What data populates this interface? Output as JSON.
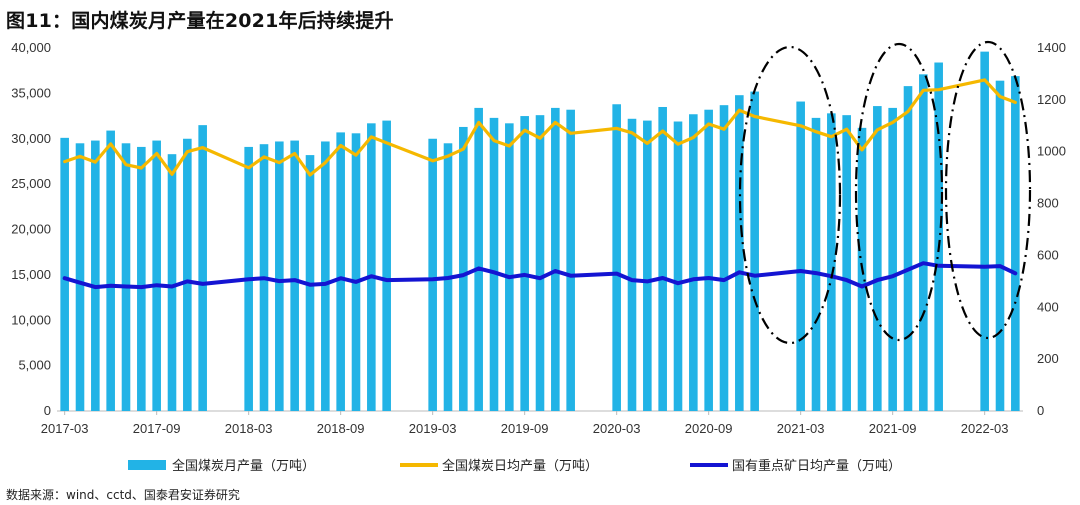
{
  "title": "图11：国内煤炭月产量在2021年后持续提升",
  "source": "数据来源：wind、cctd、国泰君安证券研究",
  "chart_data": {
    "type": "bar",
    "title": "图11：国内煤炭月产量在2021年后持续提升",
    "x": [
      "2017-03",
      "2017-04",
      "2017-05",
      "2017-06",
      "2017-07",
      "2017-08",
      "2017-09",
      "2017-10",
      "2017-11",
      "2017-12",
      "2018-01",
      "2018-02",
      "2018-03",
      "2018-04",
      "2018-05",
      "2018-06",
      "2018-07",
      "2018-08",
      "2018-09",
      "2018-10",
      "2018-11",
      "2018-12",
      "2019-01",
      "2019-02",
      "2019-03",
      "2019-04",
      "2019-05",
      "2019-06",
      "2019-07",
      "2019-08",
      "2019-09",
      "2019-10",
      "2019-11",
      "2019-12",
      "2020-01",
      "2020-02",
      "2020-03",
      "2020-04",
      "2020-05",
      "2020-06",
      "2020-07",
      "2020-08",
      "2020-09",
      "2020-10",
      "2020-11",
      "2020-12",
      "2021-01",
      "2021-02",
      "2021-03",
      "2021-04",
      "2021-05",
      "2021-06",
      "2021-07",
      "2021-08",
      "2021-09",
      "2021-10",
      "2021-11",
      "2021-12",
      "2022-01",
      "2022-02",
      "2022-03",
      "2022-04",
      "2022-05"
    ],
    "x_tick_labels": [
      "2017-03",
      "2017-09",
      "2018-03",
      "2018-09",
      "2019-03",
      "2019-09",
      "2020-03",
      "2020-09",
      "2021-03",
      "2021-09",
      "2022-03"
    ],
    "y_left": {
      "ticks": [
        "0",
        "5,000",
        "10,000",
        "15,000",
        "20,000",
        "25,000",
        "30,000",
        "35,000",
        "40,000"
      ],
      "ylim": [
        0,
        40000
      ]
    },
    "y_right": {
      "ticks": [
        "0",
        "200",
        "400",
        "600",
        "800",
        "1000",
        "1200",
        "1400"
      ],
      "ylim": [
        0,
        1400
      ]
    },
    "legend_position": "bottom",
    "series": [
      {
        "name": "全国煤炭月产量（万吨）",
        "type": "bar",
        "axis": "left",
        "color": "#22b3e6",
        "values": [
          30100,
          29500,
          29800,
          30900,
          29500,
          29100,
          29800,
          28300,
          30000,
          31500,
          null,
          null,
          29100,
          29400,
          29700,
          29800,
          28200,
          29700,
          30700,
          30600,
          31700,
          32000,
          null,
          null,
          30000,
          29500,
          31300,
          33400,
          32300,
          31700,
          32500,
          32600,
          33400,
          33200,
          null,
          null,
          33800,
          32200,
          32000,
          33500,
          31900,
          32700,
          33200,
          33700,
          34800,
          35200,
          null,
          null,
          34100,
          32300,
          32800,
          32600,
          31200,
          33600,
          33400,
          35800,
          37100,
          38400,
          null,
          null,
          39600,
          36400,
          36900
        ]
      },
      {
        "name": "全国煤炭日均产量（万吨）",
        "type": "line",
        "axis": "right",
        "color": "#f5b800",
        "values": [
          962,
          982,
          960,
          1030,
          950,
          937,
          993,
          913,
          1000,
          1016,
          null,
          null,
          938,
          980,
          958,
          993,
          910,
          958,
          1024,
          987,
          1057,
          null,
          null,
          null,
          965,
          983,
          1010,
          1113,
          1043,
          1022,
          1083,
          1052,
          1113,
          1071,
          null,
          null,
          1090,
          1073,
          1032,
          1080,
          1029,
          1055,
          1107,
          1087,
          1160,
          1136,
          null,
          null,
          1100,
          1077,
          1058,
          1087,
          1007,
          1084,
          1113,
          1155,
          1237,
          1239,
          null,
          null,
          1277,
          1213,
          1190
        ]
      },
      {
        "name": "国有重点矿日均产量（万吨）",
        "type": "line",
        "axis": "right",
        "color": "#1414d2",
        "values": [
          512,
          495,
          478,
          483,
          480,
          478,
          485,
          480,
          500,
          490,
          null,
          null,
          508,
          512,
          501,
          505,
          487,
          490,
          512,
          498,
          520,
          505,
          null,
          null,
          508,
          513,
          524,
          550,
          535,
          516,
          525,
          512,
          540,
          522,
          null,
          null,
          530,
          505,
          500,
          513,
          493,
          508,
          513,
          505,
          535,
          522,
          null,
          null,
          540,
          532,
          520,
          505,
          480,
          505,
          520,
          545,
          570,
          560,
          null,
          null,
          556,
          559,
          531
        ]
      }
    ]
  },
  "colors": {
    "bar": "#22b3e6",
    "line_total": "#f5b800",
    "line_state": "#1414d2",
    "axis": "#bbbbbb",
    "ellipse": "#000000"
  }
}
